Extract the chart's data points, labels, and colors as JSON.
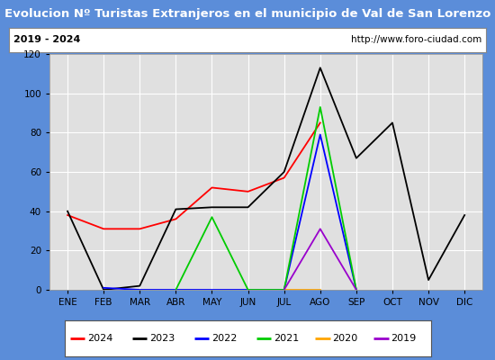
{
  "title": "Evolucion Nº Turistas Extranjeros en el municipio de Val de San Lorenzo",
  "subtitle_left": "2019 - 2024",
  "subtitle_right": "http://www.foro-ciudad.com",
  "months": [
    "ENE",
    "FEB",
    "MAR",
    "ABR",
    "MAY",
    "JUN",
    "JUL",
    "AGO",
    "SEP",
    "OCT",
    "NOV",
    "DIC"
  ],
  "series": {
    "2024": {
      "color": "#ff0000",
      "x": [
        1,
        2,
        3,
        4,
        5,
        6,
        7,
        8
      ],
      "y": [
        38,
        31,
        31,
        36,
        52,
        50,
        57,
        85
      ]
    },
    "2023": {
      "color": "#000000",
      "x": [
        1,
        2,
        3,
        4,
        5,
        6,
        7,
        8,
        9,
        10,
        11,
        12
      ],
      "y": [
        40,
        0,
        2,
        41,
        42,
        42,
        60,
        113,
        67,
        85,
        5,
        38
      ]
    },
    "2022": {
      "color": "#0000ff",
      "x": [
        2,
        3,
        7,
        8,
        9
      ],
      "y": [
        1,
        0,
        0,
        79,
        0
      ]
    },
    "2021": {
      "color": "#00cc00",
      "x": [
        4,
        5,
        6,
        7,
        8,
        9
      ],
      "y": [
        0,
        37,
        0,
        0,
        93,
        0
      ]
    },
    "2020": {
      "color": "#ffa500",
      "x": [
        7,
        8
      ],
      "y": [
        0,
        0
      ]
    },
    "2019": {
      "color": "#9900cc",
      "x": [
        7,
        8,
        9
      ],
      "y": [
        0,
        31,
        0
      ]
    }
  },
  "legend_order": [
    "2024",
    "2023",
    "2022",
    "2021",
    "2020",
    "2019"
  ],
  "ylim": [
    0,
    120
  ],
  "yticks": [
    0,
    20,
    40,
    60,
    80,
    100,
    120
  ],
  "title_bg_color": "#5b8dd9",
  "title_text_color": "#ffffff",
  "subtitle_bg_color": "#ffffff",
  "subtitle_border_color": "#888888",
  "outer_bg_color": "#5b8dd9",
  "plot_bg_color": "#e0e0e0",
  "grid_color": "#ffffff",
  "legend_bg_color": "#ffffff",
  "legend_border_color": "#555555",
  "title_fontsize": 9.5,
  "subtitle_fontsize": 8,
  "tick_fontsize": 7.5,
  "legend_fontsize": 8
}
